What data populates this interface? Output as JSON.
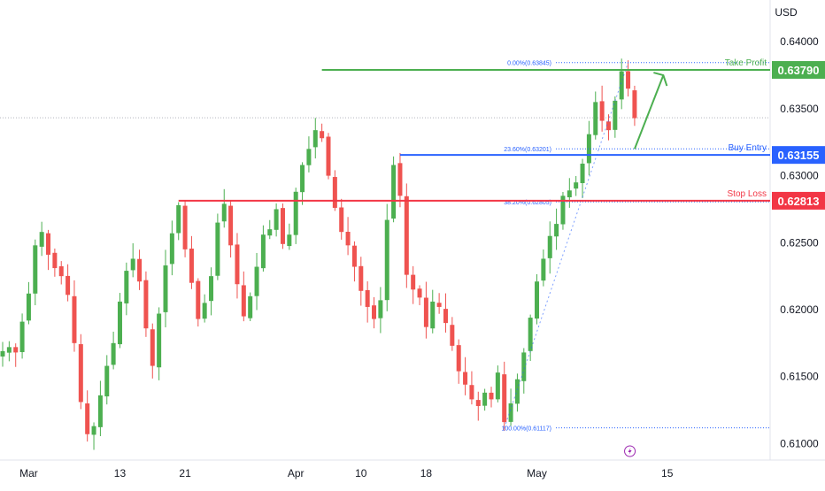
{
  "chart_data": {
    "type": "candlestick",
    "currency_label": "USD",
    "colors": {
      "up": "#26a69a",
      "up_body": "#4caf50",
      "down": "#ef5350",
      "green_line": "#4caf50",
      "blue_line": "#2962ff",
      "red_line": "#f23645",
      "fib": "#2962ff",
      "axis_text": "#131722",
      "grid_dot": "#b2b5be"
    },
    "y_axis": {
      "ylim": [
        0.6089,
        0.6418
      ],
      "ticks": [
        "0.64000",
        "0.63500",
        "0.63000",
        "0.62500",
        "0.62000",
        "0.61500",
        "0.61000"
      ]
    },
    "x_axis": {
      "ticks": [
        {
          "label": "Mar",
          "bar": 4
        },
        {
          "label": "13",
          "bar": 18
        },
        {
          "label": "21",
          "bar": 28
        },
        {
          "label": "Apr",
          "bar": 45
        },
        {
          "label": "10",
          "bar": 55
        },
        {
          "label": "18",
          "bar": 65
        },
        {
          "label": "May",
          "bar": 82
        },
        {
          "label": "15",
          "bar": 102
        }
      ]
    },
    "price_levels": [
      {
        "name": "Take Profit",
        "label": "Take Profit",
        "value": 0.6379,
        "value_label": "0.63790",
        "start_bar": 49,
        "color": "#4caf50"
      },
      {
        "name": "Buy Entry",
        "label": "Buy Entry",
        "value": 0.63155,
        "value_label": "0.63155",
        "start_bar": 61,
        "color": "#2962ff"
      },
      {
        "name": "Stop Loss",
        "label": "Stop Loss",
        "value": 0.62813,
        "value_label": "0.62813",
        "start_bar": 27,
        "color": "#f23645"
      }
    ],
    "fib_levels": [
      {
        "label": "0.00%(0.63845)",
        "value": 0.63845
      },
      {
        "label": "23.60%(0.63201)",
        "value": 0.63201
      },
      {
        "label": "38.20%(0.62805)",
        "value": 0.62805
      },
      {
        "label": "100.00%(0.61117)",
        "value": 0.61117
      }
    ],
    "current_price": 0.63433,
    "close_series": [
      0.6169,
      0.6172,
      0.6168,
      0.6191,
      0.6212,
      0.6248,
      0.6258,
      0.6241,
      0.6231,
      0.6225,
      0.6211,
      0.6175,
      0.6131,
      0.6107,
      0.6113,
      0.6136,
      0.6158,
      0.6175,
      0.6206,
      0.6229,
      0.6238,
      0.6221,
      0.6186,
      0.6158,
      0.6197,
      0.6233,
      0.6257,
      0.6278,
      0.6245,
      0.622,
      0.6193,
      0.6205,
      0.6225,
      0.6265,
      0.6279,
      0.6248,
      0.6219,
      0.6195,
      0.621,
      0.6232,
      0.6256,
      0.626,
      0.6275,
      0.6249,
      0.6256,
      0.6288,
      0.6308,
      0.632,
      0.6334,
      0.6328,
      0.63,
      0.6276,
      0.6258,
      0.6248,
      0.6232,
      0.6214,
      0.6202,
      0.6193,
      0.6207,
      0.6267,
      0.6308,
      0.6285,
      0.6226,
      0.6215,
      0.6209,
      0.6187,
      0.6206,
      0.6202,
      0.619,
      0.6173,
      0.6154,
      0.6144,
      0.6133,
      0.6128,
      0.6138,
      0.6133,
      0.6153,
      0.6116,
      0.613,
      0.6148,
      0.6168,
      0.6194,
      0.6221,
      0.6238,
      0.6255,
      0.6264,
      0.6285,
      0.6289,
      0.6295,
      0.6309,
      0.6331,
      0.6355,
      0.6341,
      0.6334,
      0.6356,
      0.6378,
      0.6365,
      0.6343
    ],
    "swing_arrow": {
      "from": {
        "bar": 97,
        "value": 0.632
      },
      "to": {
        "bar": 101,
        "value": 0.6375
      }
    },
    "bolt_icon_bar": 96
  }
}
